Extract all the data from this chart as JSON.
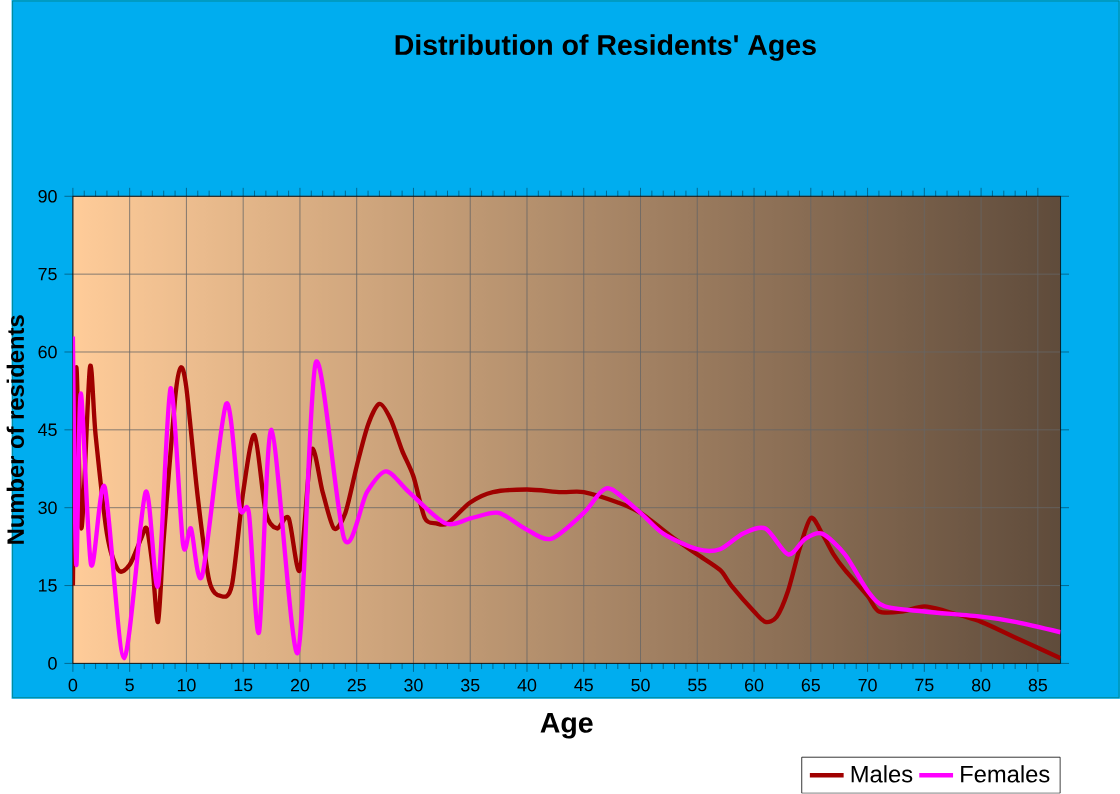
{
  "chart_data": {
    "type": "line",
    "title": "Distribution of Residents' Ages",
    "xlabel": "Age",
    "ylabel": "Number of residents",
    "xlim": [
      0,
      87
    ],
    "xticks": [
      0,
      5,
      10,
      15,
      20,
      25,
      30,
      35,
      40,
      45,
      50,
      55,
      60,
      65,
      70,
      75,
      80,
      85
    ],
    "ylim": [
      0,
      90
    ],
    "yticks": [
      0,
      15,
      30,
      45,
      60,
      75,
      90
    ],
    "grid": true,
    "legend": "bottom right",
    "marker": "none",
    "line_style": "solid",
    "series": [
      {
        "name": "Males",
        "color": "#a00000",
        "x": [
          0,
          0.3,
          0.75,
          1.5,
          2,
          3,
          4,
          5,
          6,
          6.5,
          7,
          7.5,
          8,
          9,
          9.5,
          10,
          11,
          12,
          13,
          14,
          15,
          16,
          17,
          18,
          19,
          20,
          21,
          22,
          23,
          24,
          25,
          26,
          27,
          28,
          29,
          30,
          31,
          32,
          33,
          35,
          37,
          40,
          43,
          45,
          48,
          50,
          53,
          55,
          57,
          58,
          60,
          61,
          62,
          63,
          64,
          65,
          66,
          67,
          68,
          70,
          71,
          73,
          75,
          77,
          80,
          83,
          87
        ],
        "values": [
          15,
          57,
          26,
          57,
          44,
          25,
          18,
          19,
          24,
          26,
          19,
          8,
          24,
          51,
          57,
          53,
          32,
          16,
          13,
          15,
          33,
          44,
          29,
          26,
          28,
          18,
          41,
          33,
          26,
          29,
          38,
          46,
          50,
          47,
          41,
          36,
          28,
          27,
          27,
          31,
          33,
          33.5,
          33,
          33,
          31,
          29,
          24,
          21,
          18,
          15,
          10,
          8,
          9,
          14,
          22,
          28,
          25,
          21,
          18,
          13,
          10,
          10,
          11,
          10,
          8,
          5,
          1
        ]
      },
      {
        "name": "Females",
        "color": "#ff00ff",
        "x": [
          0,
          0.3,
          0.7,
          1.6,
          2.8,
          4.5,
          6.4,
          7.5,
          8.6,
          9.7,
          10.4,
          11.4,
          13.5,
          14.7,
          15.5,
          16.4,
          17.5,
          19.8,
          21.4,
          23.9,
          25.9,
          27.6,
          29.6,
          32.8,
          35.1,
          37.5,
          39.8,
          42.1,
          45,
          46.5,
          47.5,
          50,
          52,
          55,
          57,
          59,
          61,
          63,
          64.5,
          66,
          68,
          70,
          71.5,
          75,
          80,
          83,
          87
        ],
        "values": [
          63,
          19,
          52,
          19,
          34,
          1,
          33,
          15,
          53,
          23,
          26,
          17,
          50,
          30,
          29,
          6,
          45,
          2,
          58,
          24,
          33,
          37,
          33,
          27,
          28,
          29,
          26,
          24,
          29,
          33,
          33.5,
          29,
          25,
          22,
          22,
          25,
          26,
          21,
          24,
          25,
          21,
          14,
          11,
          10,
          9,
          8,
          6
        ]
      }
    ]
  }
}
